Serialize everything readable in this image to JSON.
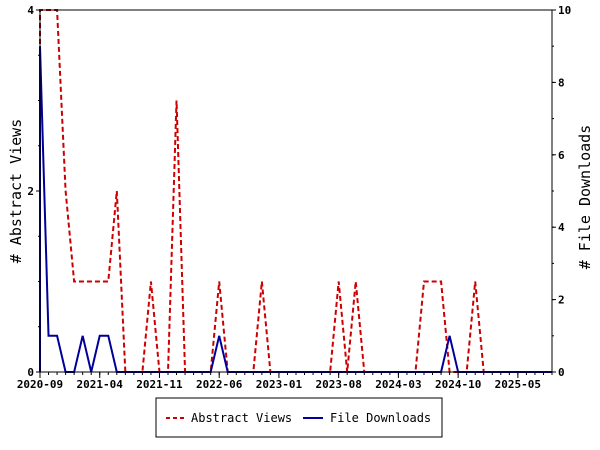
{
  "chart_data": {
    "type": "line",
    "ylabel_left": "# Abstract Views",
    "ylabel_right": "# File Downloads",
    "ylim_left": [
      0,
      4
    ],
    "ylim_right": [
      0,
      10
    ],
    "yticks_left": [
      "0",
      "2",
      "4"
    ],
    "yticks_right": [
      "0",
      "2",
      "4",
      "6",
      "8",
      "10"
    ],
    "x_tick_labels": [
      "2020-09",
      "2021-04",
      "2021-11",
      "2022-06",
      "2023-01",
      "2023-08",
      "2024-03",
      "2024-10",
      "2025-05"
    ],
    "x_range_months": [
      "2020-09",
      "2025-09"
    ],
    "grid": false,
    "legend_position": "bottom",
    "series": [
      {
        "name": "Abstract Views",
        "axis": "left",
        "color": "#cc0000",
        "style": "dashed",
        "points": [
          [
            "2020-09",
            0
          ],
          [
            "2020-09",
            4
          ],
          [
            "2020-10",
            4
          ],
          [
            "2020-11",
            4
          ],
          [
            "2020-12",
            2
          ],
          [
            "2021-01",
            1
          ],
          [
            "2021-02",
            1
          ],
          [
            "2021-03",
            1
          ],
          [
            "2021-04",
            1
          ],
          [
            "2021-05",
            1
          ],
          [
            "2021-06",
            2
          ],
          [
            "2021-07",
            0
          ],
          [
            "2021-08",
            0
          ],
          [
            "2021-09",
            0
          ],
          [
            "2021-10",
            1
          ],
          [
            "2021-11",
            0
          ],
          [
            "2021-12",
            0
          ],
          [
            "2022-01",
            3
          ],
          [
            "2022-02",
            0
          ],
          [
            "2022-03",
            0
          ],
          [
            "2022-04",
            0
          ],
          [
            "2022-05",
            0
          ],
          [
            "2022-06",
            1
          ],
          [
            "2022-07",
            0
          ],
          [
            "2022-08",
            0
          ],
          [
            "2022-09",
            0
          ],
          [
            "2022-10",
            0
          ],
          [
            "2022-11",
            1
          ],
          [
            "2022-12",
            0
          ],
          [
            "2023-01",
            0
          ],
          [
            "2023-02",
            0
          ],
          [
            "2023-03",
            0
          ],
          [
            "2023-04",
            0
          ],
          [
            "2023-05",
            0
          ],
          [
            "2023-06",
            0
          ],
          [
            "2023-07",
            0
          ],
          [
            "2023-08",
            1
          ],
          [
            "2023-09",
            0
          ],
          [
            "2023-10",
            1
          ],
          [
            "2023-11",
            0
          ],
          [
            "2023-12",
            0
          ],
          [
            "2024-01",
            0
          ],
          [
            "2024-02",
            0
          ],
          [
            "2024-03",
            0
          ],
          [
            "2024-04",
            0
          ],
          [
            "2024-05",
            0
          ],
          [
            "2024-06",
            1
          ],
          [
            "2024-07",
            1
          ],
          [
            "2024-08",
            1
          ],
          [
            "2024-09",
            0
          ],
          [
            "2024-10",
            0
          ],
          [
            "2024-11",
            0
          ],
          [
            "2024-12",
            1
          ],
          [
            "2025-01",
            0
          ],
          [
            "2025-02",
            0
          ],
          [
            "2025-03",
            0
          ],
          [
            "2025-04",
            0
          ],
          [
            "2025-05",
            0
          ],
          [
            "2025-06",
            0
          ],
          [
            "2025-07",
            0
          ],
          [
            "2025-08",
            0
          ],
          [
            "2025-09",
            0
          ]
        ]
      },
      {
        "name": "File Downloads",
        "axis": "right",
        "color": "#000099",
        "style": "solid",
        "points": [
          [
            "2020-09",
            0
          ],
          [
            "2020-09",
            9
          ],
          [
            "2020-10",
            1
          ],
          [
            "2020-11",
            1
          ],
          [
            "2020-12",
            0
          ],
          [
            "2021-01",
            0
          ],
          [
            "2021-02",
            1
          ],
          [
            "2021-03",
            0
          ],
          [
            "2021-04",
            1
          ],
          [
            "2021-05",
            1
          ],
          [
            "2021-06",
            0
          ],
          [
            "2021-07",
            0
          ],
          [
            "2021-08",
            0
          ],
          [
            "2021-09",
            0
          ],
          [
            "2021-10",
            0
          ],
          [
            "2021-11",
            0
          ],
          [
            "2021-12",
            0
          ],
          [
            "2022-01",
            0
          ],
          [
            "2022-02",
            0
          ],
          [
            "2022-03",
            0
          ],
          [
            "2022-04",
            0
          ],
          [
            "2022-05",
            0
          ],
          [
            "2022-06",
            1
          ],
          [
            "2022-07",
            0
          ],
          [
            "2022-08",
            0
          ],
          [
            "2022-09",
            0
          ],
          [
            "2022-10",
            0
          ],
          [
            "2022-11",
            0
          ],
          [
            "2022-12",
            0
          ],
          [
            "2023-01",
            0
          ],
          [
            "2023-02",
            0
          ],
          [
            "2023-03",
            0
          ],
          [
            "2023-04",
            0
          ],
          [
            "2023-05",
            0
          ],
          [
            "2023-06",
            0
          ],
          [
            "2023-07",
            0
          ],
          [
            "2023-08",
            0
          ],
          [
            "2023-09",
            0
          ],
          [
            "2023-10",
            0
          ],
          [
            "2023-11",
            0
          ],
          [
            "2023-12",
            0
          ],
          [
            "2024-01",
            0
          ],
          [
            "2024-02",
            0
          ],
          [
            "2024-03",
            0
          ],
          [
            "2024-04",
            0
          ],
          [
            "2024-05",
            0
          ],
          [
            "2024-06",
            0
          ],
          [
            "2024-07",
            0
          ],
          [
            "2024-08",
            0
          ],
          [
            "2024-09",
            1
          ],
          [
            "2024-10",
            0
          ],
          [
            "2024-11",
            0
          ],
          [
            "2024-12",
            0
          ],
          [
            "2025-01",
            0
          ],
          [
            "2025-02",
            0
          ],
          [
            "2025-03",
            0
          ],
          [
            "2025-04",
            0
          ],
          [
            "2025-05",
            0
          ],
          [
            "2025-06",
            0
          ],
          [
            "2025-07",
            0
          ],
          [
            "2025-08",
            0
          ],
          [
            "2025-09",
            0
          ]
        ]
      }
    ]
  }
}
